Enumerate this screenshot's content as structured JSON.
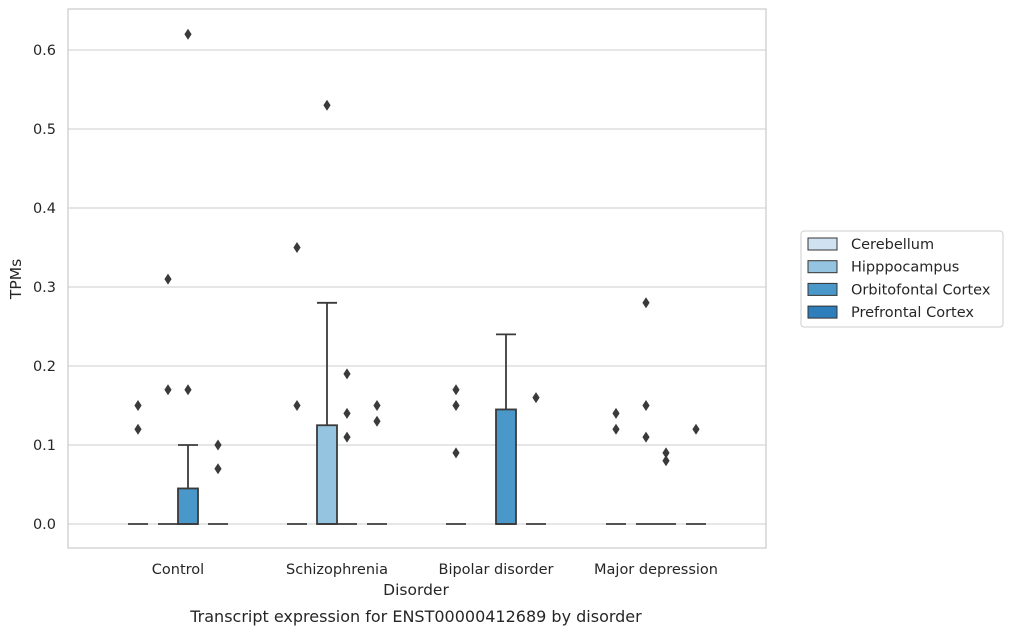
{
  "chart_data": {
    "type": "box",
    "caption": "Transcript expression for ENST00000412689 by disorder",
    "xlabel": "Disorder",
    "ylabel": "TPMs",
    "ylim": [
      -0.03,
      0.65
    ],
    "yticks": [
      0.0,
      0.1,
      0.2,
      0.3,
      0.4,
      0.5,
      0.6
    ],
    "ytick_labels": [
      "0.0",
      "0.1",
      "0.2",
      "0.3",
      "0.4",
      "0.5",
      "0.6"
    ],
    "grid": "horizontal",
    "legend_position": "right",
    "categories": [
      "Control",
      "Schizophrenia",
      "Bipolar disorder",
      "Major depression"
    ],
    "series": [
      {
        "name": "Cerebellum",
        "color": "#d0e1f2",
        "boxes": [
          {
            "q1": 0,
            "median": 0,
            "q3": 0,
            "whisker_low": 0,
            "whisker_high": 0,
            "outliers": [
              0.12,
              0.15
            ]
          },
          {
            "q1": 0,
            "median": 0,
            "q3": 0,
            "whisker_low": 0,
            "whisker_high": 0,
            "outliers": [
              0.15,
              0.35
            ]
          },
          {
            "q1": 0,
            "median": 0,
            "q3": 0,
            "whisker_low": 0,
            "whisker_high": 0,
            "outliers": [
              0.09,
              0.15,
              0.17
            ]
          },
          {
            "q1": 0,
            "median": 0,
            "q3": 0,
            "whisker_low": 0,
            "whisker_high": 0,
            "outliers": [
              0.12,
              0.14
            ]
          }
        ]
      },
      {
        "name": "Hipppocampus",
        "color": "#94c4df",
        "boxes": [
          {
            "q1": 0,
            "median": 0,
            "q3": 0,
            "whisker_low": 0,
            "whisker_high": 0,
            "outliers": [
              0.17,
              0.31
            ]
          },
          {
            "q1": 0,
            "median": 0,
            "q3": 0.125,
            "whisker_low": 0,
            "whisker_high": 0.28,
            "outliers": [
              0.53
            ]
          },
          null,
          {
            "q1": 0,
            "median": 0,
            "q3": 0,
            "whisker_low": 0,
            "whisker_high": 0,
            "outliers": [
              0.11,
              0.15,
              0.28
            ]
          }
        ]
      },
      {
        "name": "Orbitofontal Cortex",
        "color": "#4a98c9",
        "boxes": [
          {
            "q1": 0,
            "median": 0,
            "q3": 0.045,
            "whisker_low": 0,
            "whisker_high": 0.1,
            "outliers": [
              0.17,
              0.62
            ]
          },
          {
            "q1": 0,
            "median": 0,
            "q3": 0,
            "whisker_low": 0,
            "whisker_high": 0,
            "outliers": [
              0.11,
              0.14,
              0.19
            ]
          },
          {
            "q1": 0,
            "median": 0,
            "q3": 0.145,
            "whisker_low": 0,
            "whisker_high": 0.24,
            "outliers": []
          },
          {
            "q1": 0,
            "median": 0,
            "q3": 0,
            "whisker_low": 0,
            "whisker_high": 0,
            "outliers": [
              0.08,
              0.09
            ]
          }
        ]
      },
      {
        "name": "Prefrontal Cortex",
        "color": "#2e7ebc",
        "boxes": [
          {
            "q1": 0,
            "median": 0,
            "q3": 0,
            "whisker_low": 0,
            "whisker_high": 0,
            "outliers": [
              0.07,
              0.1
            ]
          },
          {
            "q1": 0,
            "median": 0,
            "q3": 0,
            "whisker_low": 0,
            "whisker_high": 0,
            "outliers": [
              0.13,
              0.15
            ]
          },
          {
            "q1": 0,
            "median": 0,
            "q3": 0,
            "whisker_low": 0,
            "whisker_high": 0,
            "outliers": [
              0.16
            ]
          },
          {
            "q1": 0,
            "median": 0,
            "q3": 0,
            "whisker_low": 0,
            "whisker_high": 0,
            "outliers": [
              0.12
            ]
          }
        ]
      }
    ]
  }
}
